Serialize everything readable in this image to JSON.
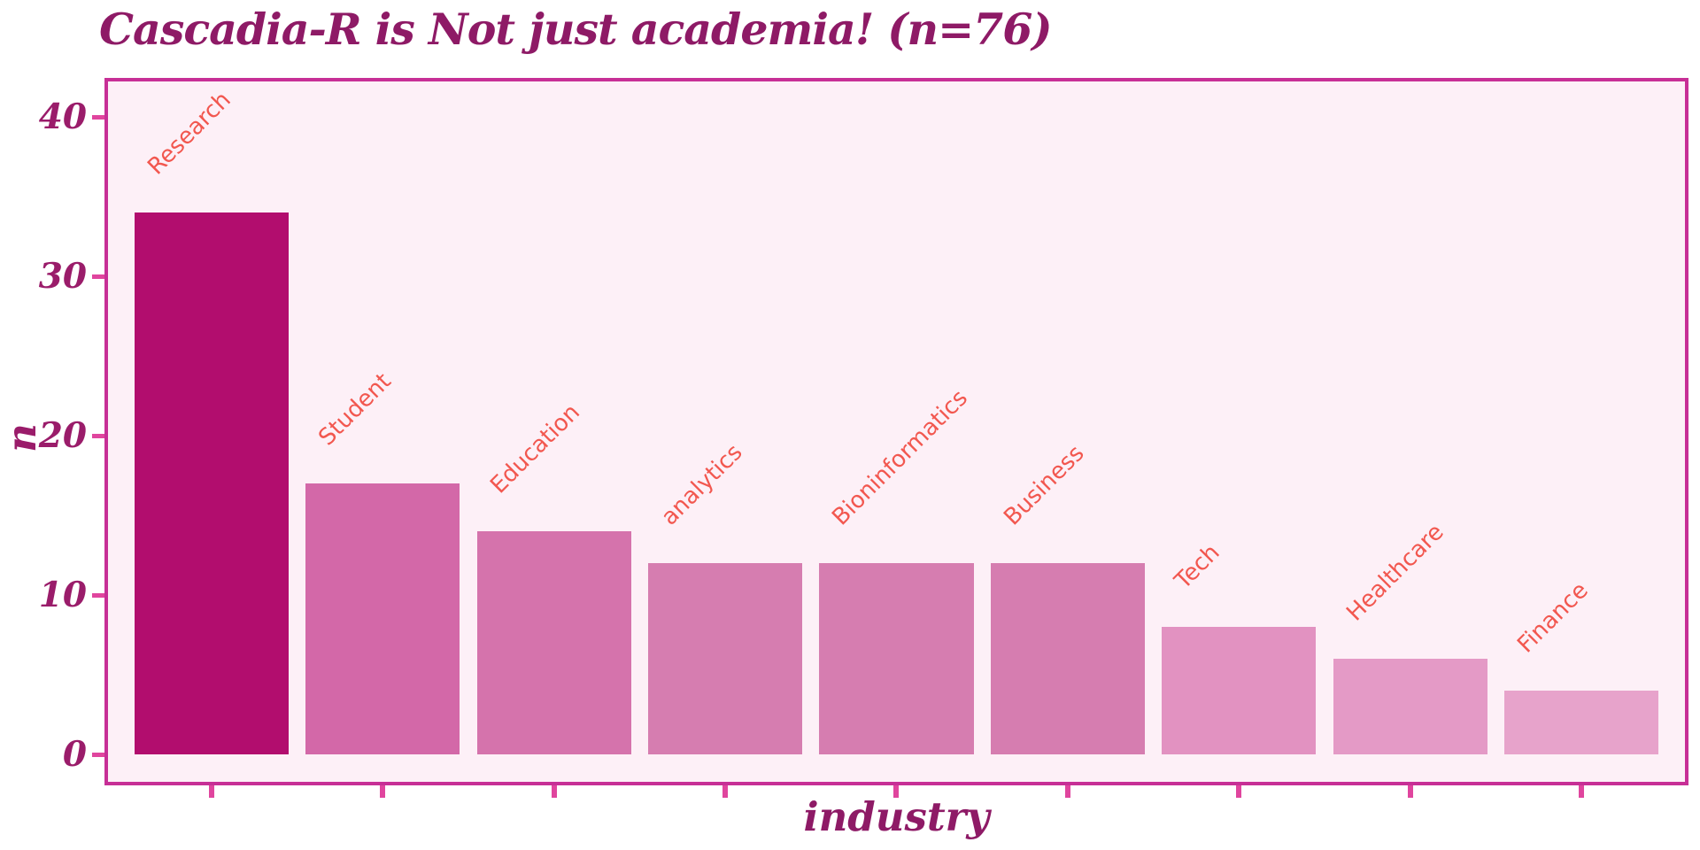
{
  "chart_data": {
    "type": "bar",
    "title": "Cascadia-R is Not just academia! (n=76)",
    "xlabel": "industry",
    "ylabel": "n",
    "categories": [
      "Research",
      "Student",
      "Education",
      "analytics",
      "Bioninformatics",
      "Business",
      "Tech",
      "Healthcare",
      "Finance"
    ],
    "values": [
      34,
      17,
      14,
      12,
      12,
      12,
      8,
      6,
      4
    ],
    "bar_colors": [
      "#b20d6e",
      "#d368a8",
      "#d573ac",
      "#d67db0",
      "#d67db0",
      "#d67db0",
      "#e292c1",
      "#e49ac6",
      "#e7a3cb"
    ],
    "yticks": [
      0,
      10,
      20,
      30,
      40
    ],
    "ylim": [
      0,
      42.5
    ],
    "grid": false,
    "legend": false,
    "bar_label_rotation_deg": 45,
    "bar_labels_above_bars": true
  },
  "colors": {
    "page_background": "#ffffff",
    "panel_background": "#fdf0f7",
    "panel_border": "#c72f96",
    "tick_mark": "#e0459e",
    "title_text": "#8e1a66",
    "axis_text": "#9a1c6a",
    "bar_label_text": "#f2574f"
  }
}
